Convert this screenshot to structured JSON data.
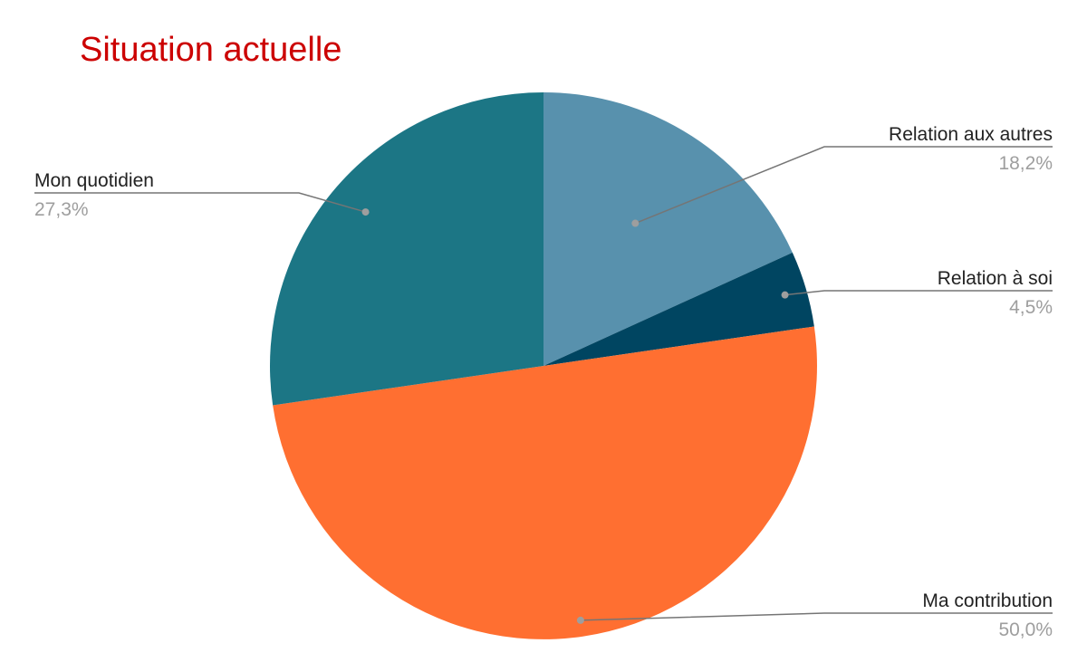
{
  "chart_data": {
    "type": "pie",
    "title": "Situation actuelle",
    "slices": [
      {
        "label": "Relation aux autres",
        "value": 18.2,
        "percent_label": "18,2%",
        "color": "#5891ad"
      },
      {
        "label": "Relation à soi",
        "value": 4.5,
        "percent_label": "4,5%",
        "color": "#004561"
      },
      {
        "label": "Ma contribution",
        "value": 50.0,
        "percent_label": "50,0%",
        "color": "#ff6f31"
      },
      {
        "label": "Mon quotidien",
        "value": 27.3,
        "percent_label": "27,3%",
        "color": "#1c7685"
      }
    ],
    "start_angle": "12 o'clock",
    "direction": "clockwise",
    "legend": "none",
    "title_color": "#cc0000"
  }
}
